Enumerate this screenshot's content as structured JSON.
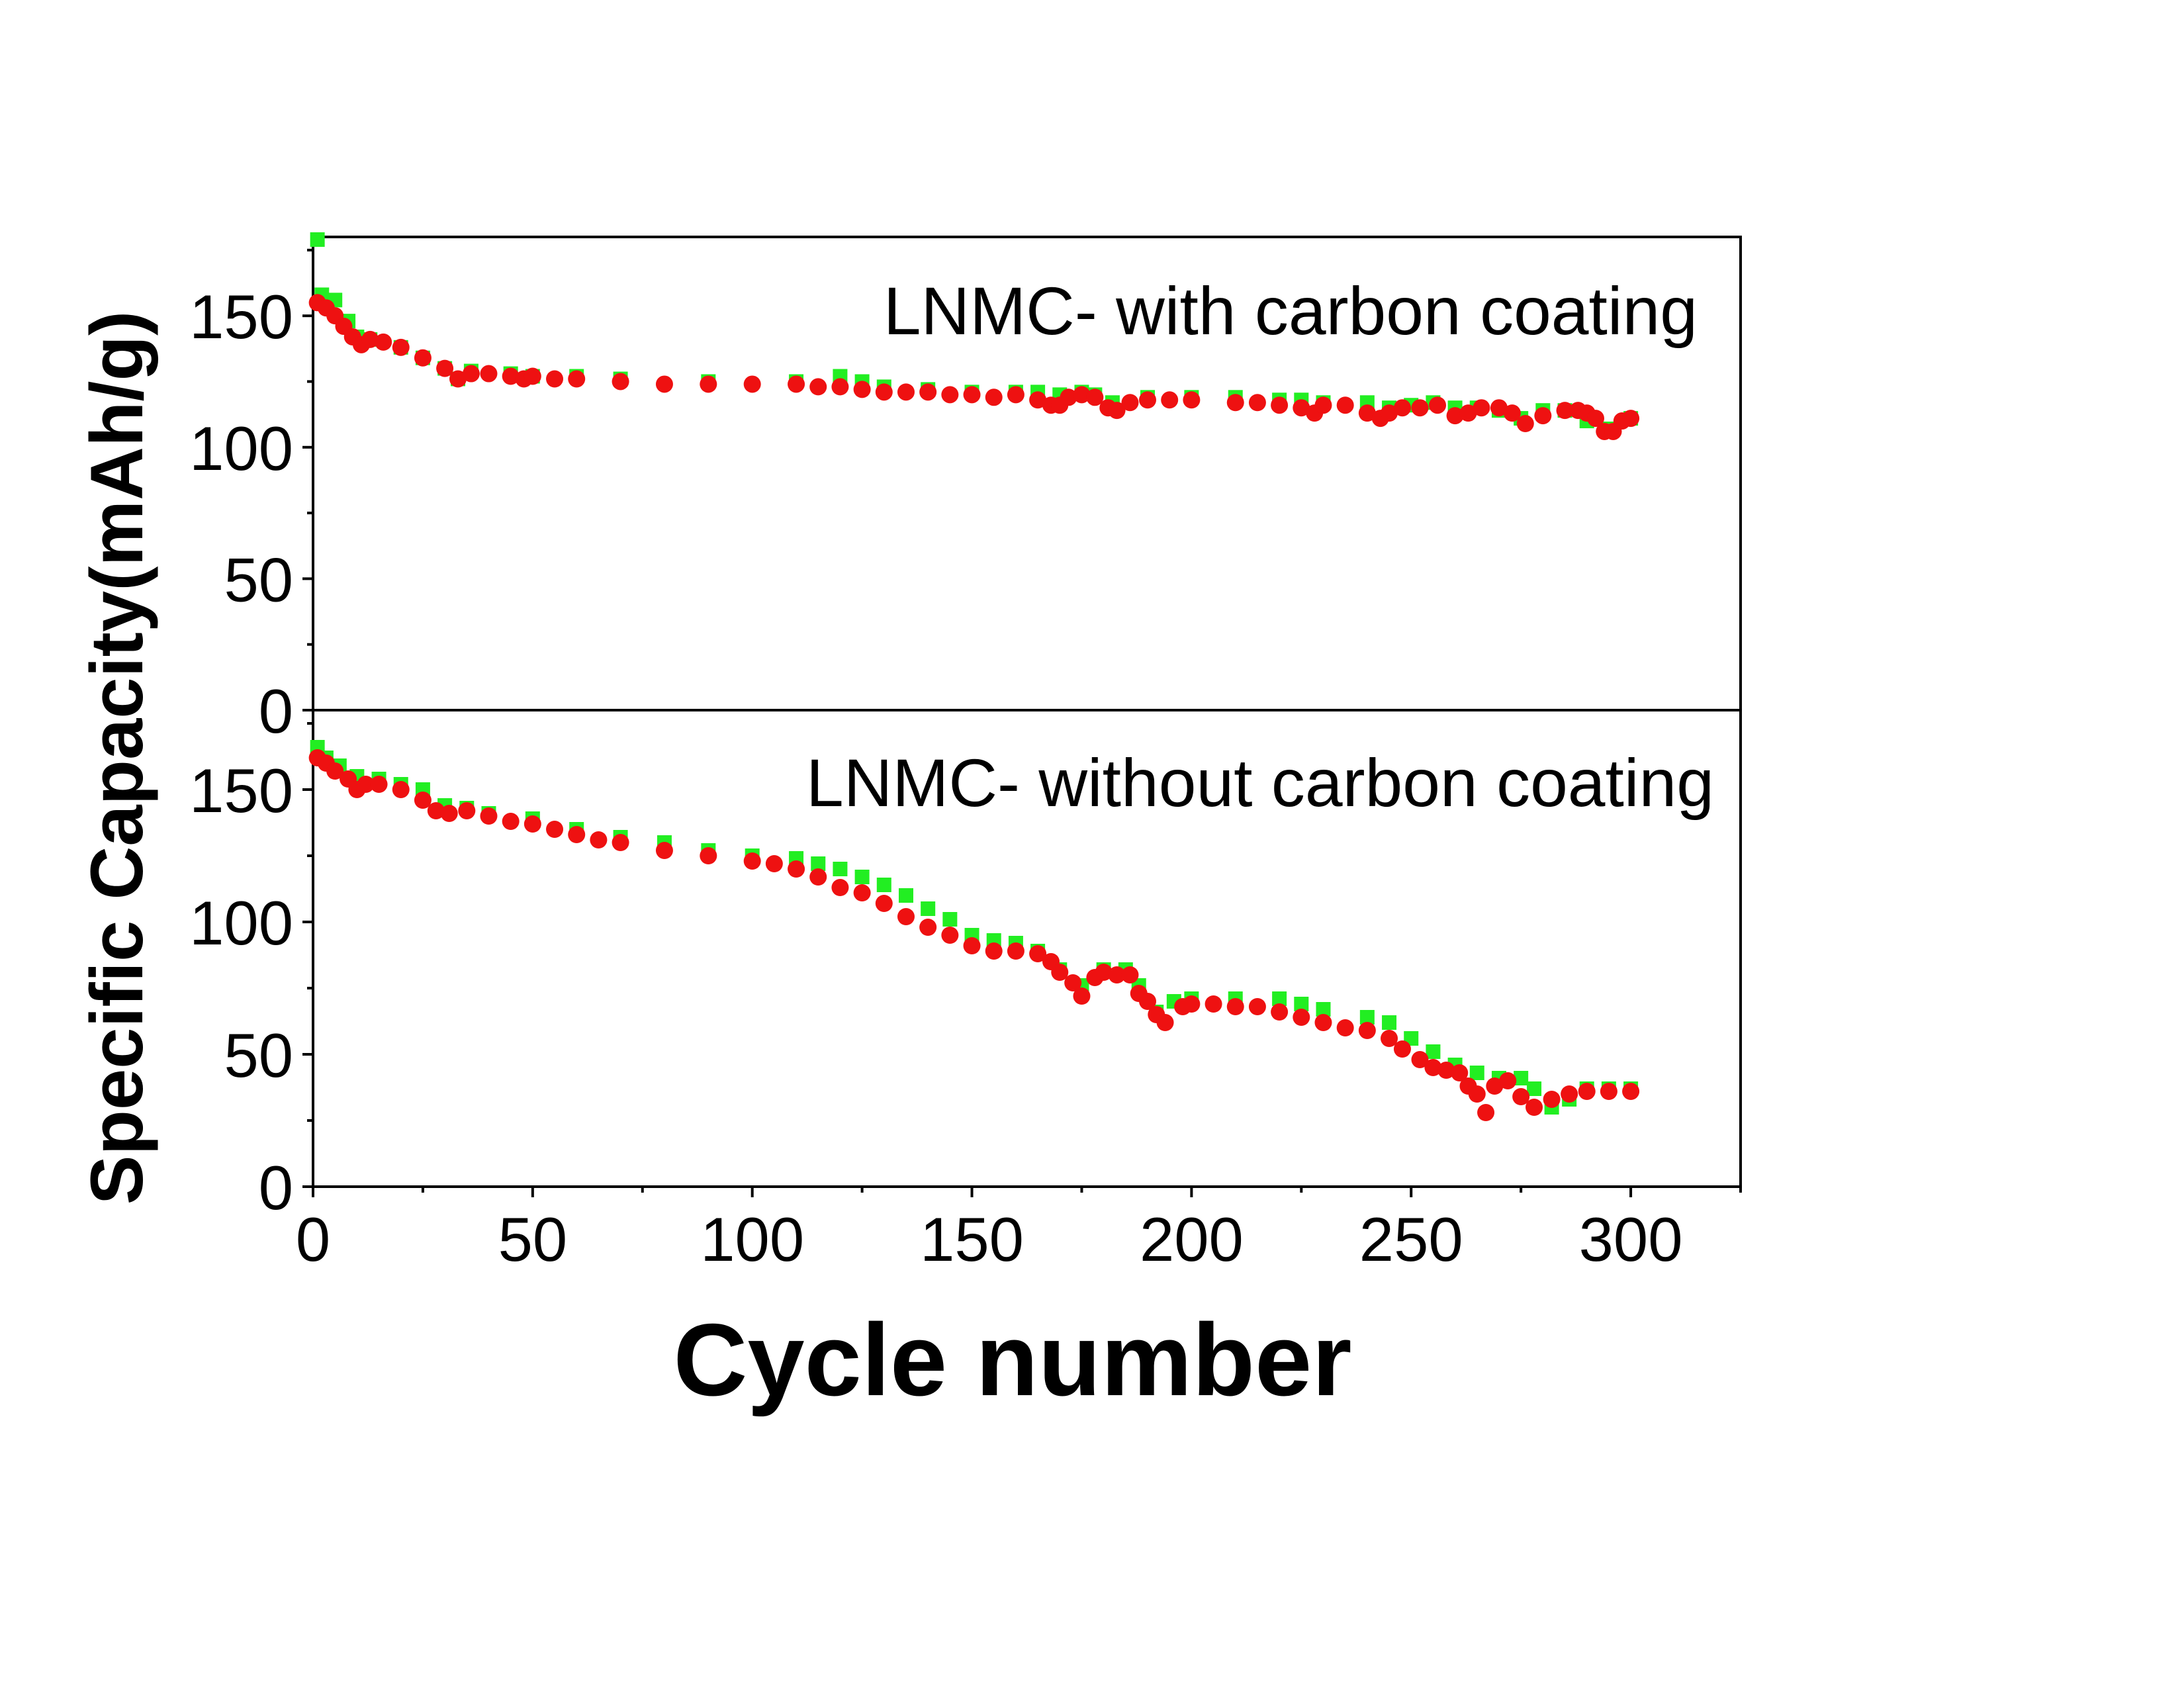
{
  "chart_data": [
    {
      "type": "scatter",
      "panel_label": "LNMC- with carbon coating",
      "xlabel": "Cycle number",
      "ylabel": "Specific Capacity(mAh/g)",
      "xlim": [
        0,
        325
      ],
      "ylim": [
        0,
        180
      ],
      "xticks": [
        0,
        50,
        100,
        150,
        200,
        250,
        300
      ],
      "yticks": [
        0,
        50,
        100,
        150
      ],
      "series": [
        {
          "color": "#22ee22",
          "marker": "square",
          "x": [
            1,
            2,
            5,
            8,
            10,
            13,
            20,
            25,
            30,
            33,
            36,
            45,
            50,
            60,
            70,
            90,
            110,
            120,
            125,
            130,
            140,
            150,
            160,
            165,
            170,
            175,
            178,
            182,
            190,
            200,
            210,
            220,
            225,
            230,
            240,
            245,
            250,
            255,
            260,
            265,
            270,
            275,
            280,
            285,
            290,
            295,
            300
          ],
          "y": [
            179,
            158,
            156,
            148,
            142,
            141,
            138,
            134,
            130,
            126,
            129,
            128,
            127,
            127,
            126,
            125,
            125,
            127,
            125,
            123,
            122,
            121,
            121,
            121,
            120,
            121,
            120,
            117,
            119,
            119,
            119,
            118,
            118,
            117,
            117,
            115,
            116,
            117,
            115,
            115,
            114,
            111,
            114,
            114,
            110,
            107,
            111
          ]
        },
        {
          "color": "#ee1111",
          "marker": "circle",
          "x": [
            1,
            3,
            5,
            7,
            9,
            11,
            13,
            16,
            20,
            25,
            30,
            33,
            36,
            40,
            45,
            48,
            50,
            55,
            60,
            70,
            80,
            90,
            100,
            110,
            115,
            120,
            125,
            130,
            135,
            140,
            145,
            150,
            155,
            160,
            165,
            168,
            170,
            172,
            175,
            178,
            181,
            183,
            186,
            190,
            195,
            200,
            210,
            215,
            220,
            225,
            228,
            230,
            235,
            240,
            243,
            245,
            248,
            252,
            256,
            260,
            263,
            266,
            270,
            273,
            276,
            280,
            285,
            288,
            290,
            292,
            294,
            296,
            298,
            300
          ],
          "y": [
            155,
            153,
            150,
            146,
            142,
            139,
            141,
            140,
            138,
            134,
            130,
            126,
            128,
            128,
            127,
            126,
            127,
            126,
            126,
            125,
            124,
            124,
            124,
            124,
            123,
            123,
            122,
            121,
            121,
            121,
            120,
            120,
            119,
            120,
            118,
            116,
            116,
            119,
            120,
            119,
            115,
            114,
            117,
            118,
            118,
            118,
            117,
            117,
            116,
            115,
            113,
            116,
            116,
            113,
            111,
            113,
            115,
            115,
            116,
            112,
            113,
            115,
            115,
            113,
            109,
            112,
            114,
            114,
            113,
            111,
            106,
            106,
            110,
            111
          ]
        }
      ]
    },
    {
      "type": "scatter",
      "panel_label": "LNMC- without carbon coating",
      "xlabel": "Cycle number",
      "ylabel": "Specific Capacity(mAh/g)",
      "xlim": [
        0,
        325
      ],
      "ylim": [
        0,
        180
      ],
      "xticks": [
        0,
        50,
        100,
        150,
        200,
        250,
        300
      ],
      "yticks": [
        0,
        50,
        100,
        150
      ],
      "series": [
        {
          "color": "#22ee22",
          "marker": "square",
          "x": [
            1,
            3,
            6,
            10,
            15,
            20,
            25,
            30,
            35,
            40,
            50,
            60,
            70,
            80,
            90,
            100,
            110,
            115,
            120,
            125,
            130,
            135,
            140,
            145,
            150,
            155,
            160,
            165,
            170,
            175,
            180,
            185,
            188,
            192,
            196,
            200,
            210,
            220,
            225,
            230,
            240,
            245,
            250,
            255,
            260,
            265,
            270,
            275,
            278,
            282,
            286,
            290,
            295,
            300
          ],
          "y": [
            166,
            162,
            159,
            155,
            154,
            152,
            150,
            144,
            143,
            141,
            139,
            135,
            132,
            130,
            127,
            125,
            124,
            122,
            120,
            117,
            114,
            110,
            105,
            101,
            95,
            93,
            92,
            89,
            82,
            76,
            82,
            82,
            76,
            66,
            70,
            71,
            71,
            71,
            69,
            67,
            64,
            62,
            56,
            51,
            46,
            43,
            41,
            41,
            37,
            30,
            33,
            37,
            37,
            37
          ]
        },
        {
          "color": "#ee1111",
          "marker": "circle",
          "x": [
            1,
            3,
            5,
            8,
            10,
            12,
            15,
            20,
            25,
            28,
            31,
            35,
            40,
            45,
            50,
            55,
            60,
            65,
            70,
            80,
            90,
            100,
            105,
            110,
            115,
            120,
            125,
            130,
            135,
            140,
            145,
            150,
            155,
            160,
            165,
            168,
            170,
            173,
            175,
            178,
            180,
            183,
            186,
            188,
            190,
            192,
            194,
            198,
            200,
            205,
            210,
            215,
            220,
            225,
            230,
            235,
            240,
            245,
            248,
            252,
            255,
            258,
            261,
            263,
            265,
            267,
            269,
            272,
            275,
            278,
            282,
            286,
            290,
            295,
            300
          ],
          "y": [
            162,
            160,
            157,
            154,
            150,
            152,
            152,
            150,
            146,
            142,
            141,
            142,
            140,
            138,
            137,
            135,
            133,
            131,
            130,
            127,
            125,
            123,
            122,
            120,
            117,
            113,
            111,
            107,
            102,
            98,
            95,
            91,
            89,
            89,
            88,
            85,
            81,
            77,
            72,
            79,
            81,
            80,
            80,
            73,
            70,
            65,
            62,
            68,
            69,
            69,
            68,
            68,
            66,
            64,
            62,
            60,
            59,
            56,
            52,
            48,
            45,
            44,
            43,
            38,
            35,
            28,
            38,
            40,
            34,
            30,
            33,
            35,
            36,
            36,
            36
          ]
        }
      ]
    }
  ]
}
